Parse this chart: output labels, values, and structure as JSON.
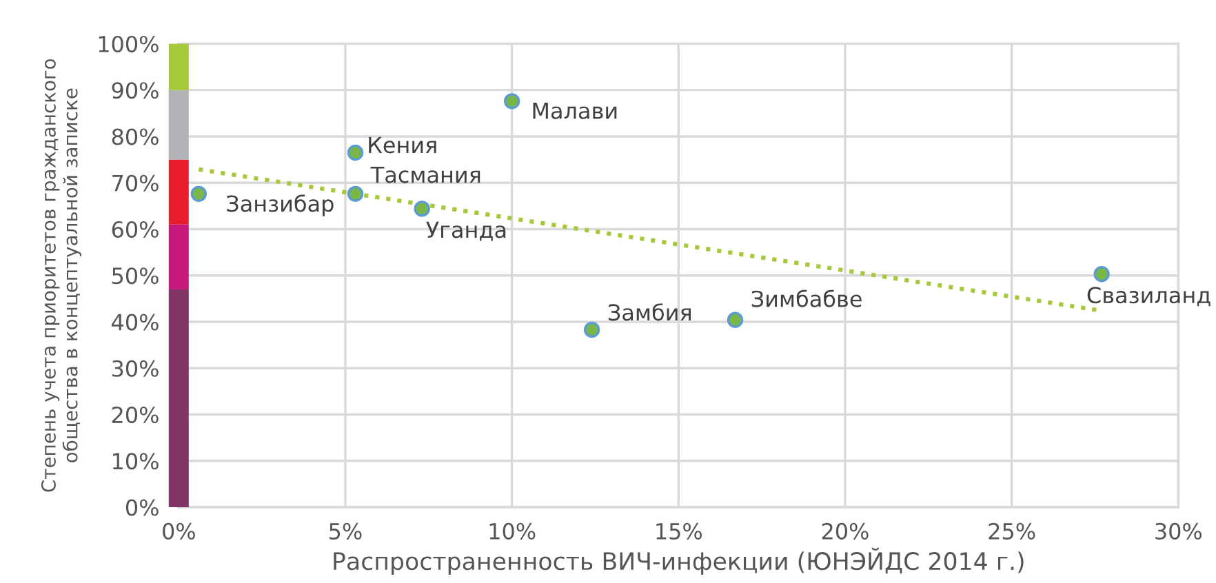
{
  "chart_data": {
    "type": "scatter",
    "xlabel": "Распространенность ВИЧ-инфекции (ЮНЭЙДС 2014 г.)",
    "ylabel": "Степень учета приоритетов гражданского общества в концептуальной записке",
    "xlim": [
      0,
      30
    ],
    "xticks": [
      {
        "value": 0,
        "label": "0%"
      },
      {
        "value": 5,
        "label": "5%"
      },
      {
        "value": 10,
        "label": "10%"
      },
      {
        "value": 15,
        "label": "15%"
      },
      {
        "value": 20,
        "label": "20%"
      },
      {
        "value": 25,
        "label": "25%"
      },
      {
        "value": 30,
        "label": "30%"
      }
    ],
    "ylim": [
      0,
      100
    ],
    "yticks": [
      {
        "value": 0,
        "label": "0%"
      },
      {
        "value": 10,
        "label": "10%"
      },
      {
        "value": 20,
        "label": "20%"
      },
      {
        "value": 30,
        "label": "30%"
      },
      {
        "value": 40,
        "label": "40%"
      },
      {
        "value": 50,
        "label": "50%"
      },
      {
        "value": 60,
        "label": "60%"
      },
      {
        "value": 70,
        "label": "70%"
      },
      {
        "value": 80,
        "label": "80%"
      },
      {
        "value": 90,
        "label": "90%"
      },
      {
        "value": 100,
        "label": "100%"
      }
    ],
    "grid": true,
    "legend": false,
    "marker": "circle",
    "series": [
      {
        "type": "bar",
        "color": "#813466",
        "x": [
          0
        ],
        "values": [
          47
        ]
      },
      {
        "type": "bar",
        "color": "#c5197d",
        "x": [
          0
        ],
        "values": [
          14
        ]
      },
      {
        "type": "bar",
        "color": "#e81e2e",
        "x": [
          0
        ],
        "values": [
          14
        ]
      },
      {
        "type": "bar",
        "color": "#b2b3b7",
        "x": [
          0
        ],
        "values": [
          15
        ]
      },
      {
        "type": "bar",
        "color": "#a6c93a",
        "x": [
          0
        ],
        "values": [
          10
        ]
      },
      {
        "color": "#7ab648",
        "x": [
          0.6,
          5.3,
          5.3,
          7.3,
          10.0,
          12.4,
          16.7,
          27.7
        ],
        "values": [
          67.6,
          76.5,
          67.6,
          64.4,
          87.6,
          38.3,
          40.4,
          50.3
        ]
      },
      {
        "type": "line",
        "color": "#a6c93a",
        "line_style": "dotted",
        "marker": "none",
        "x": [
          0.6,
          27.6
        ],
        "values": [
          72.9,
          42.5
        ]
      }
    ],
    "stacked": true,
    "annotations": [
      {
        "text": "Занзибар",
        "x": 0.6,
        "y": 67.6
      },
      {
        "text": "Кения",
        "x": 5.3,
        "y": 76.5
      },
      {
        "text": "Тасмания",
        "x": 5.3,
        "y": 67.6
      },
      {
        "text": "Уганда",
        "x": 7.3,
        "y": 64.4
      },
      {
        "text": "Малави",
        "x": 10.0,
        "y": 87.6
      },
      {
        "text": "Замбия",
        "x": 12.4,
        "y": 38.3
      },
      {
        "text": "Зимбабве",
        "x": 16.7,
        "y": 40.4
      },
      {
        "text": "Свазиланд",
        "x": 27.7,
        "y": 50.3
      }
    ]
  }
}
